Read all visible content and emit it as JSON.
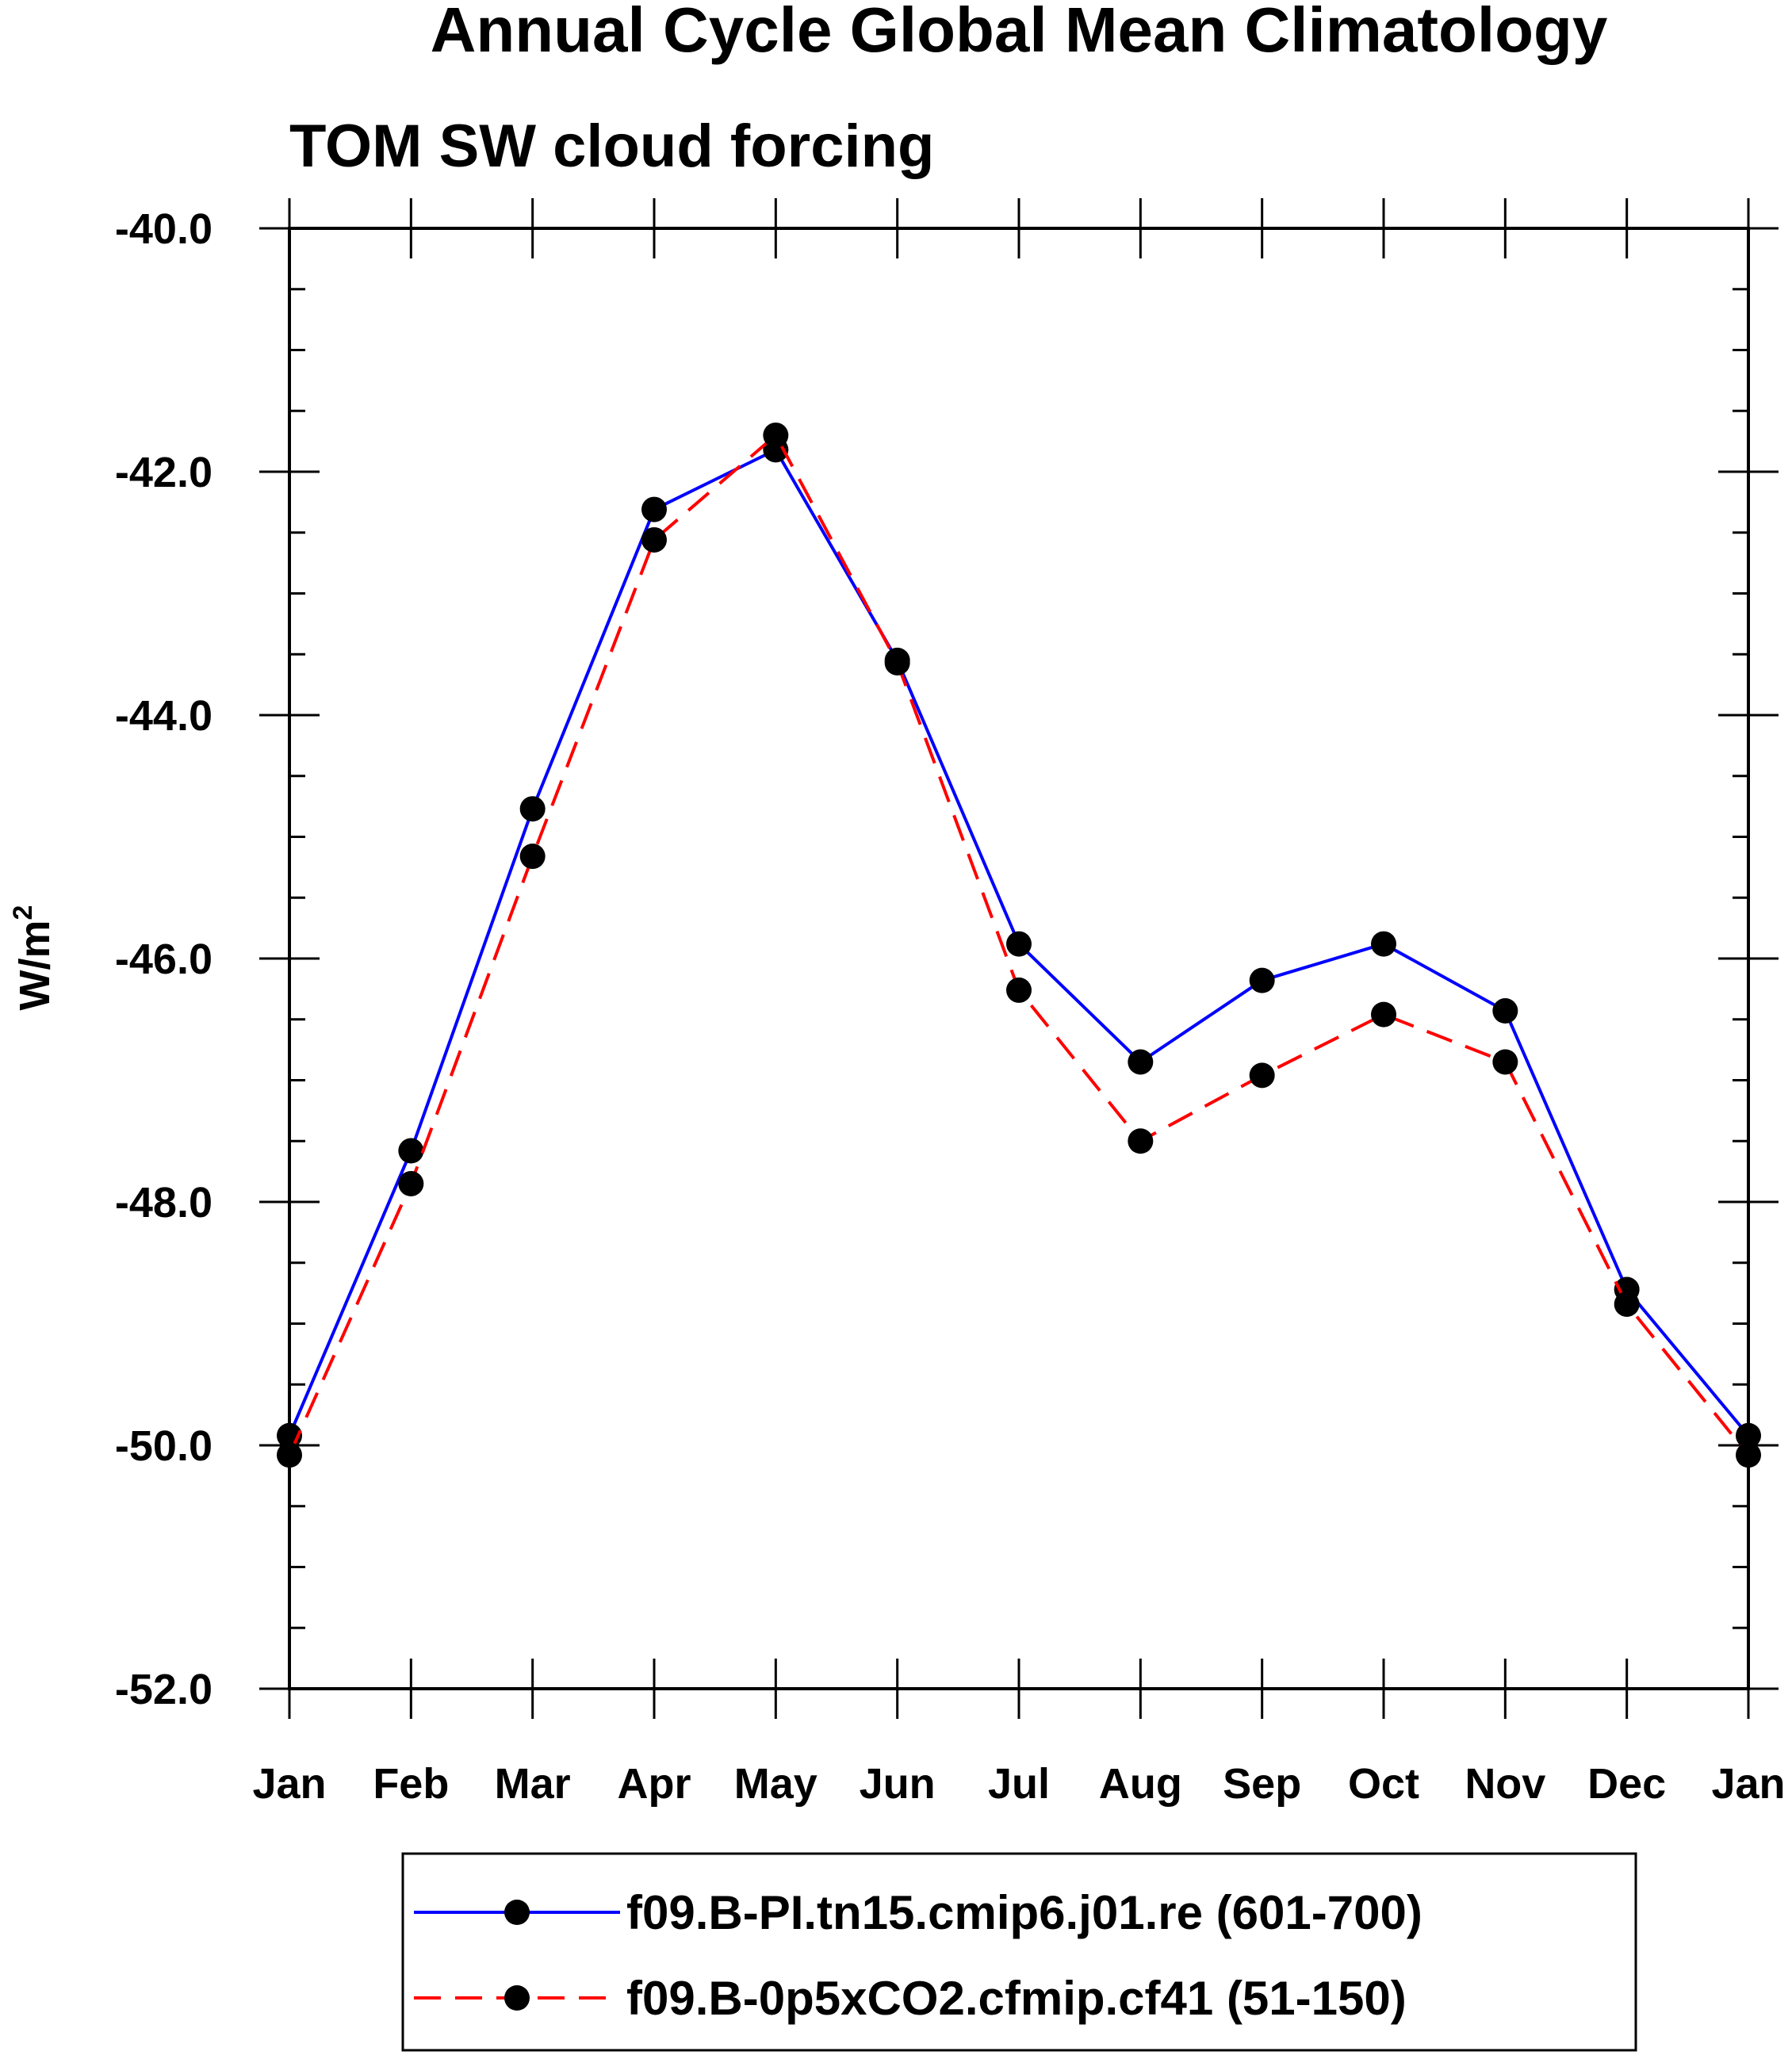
{
  "chart_data": {
    "type": "line",
    "title": "Annual Cycle Global Mean Climatology",
    "subtitle": "TOM SW cloud forcing",
    "xlabel": "",
    "ylabel": "W/m",
    "ylabel_superscript": "2",
    "categories": [
      "Jan",
      "Feb",
      "Mar",
      "Apr",
      "May",
      "Jun",
      "Jul",
      "Aug",
      "Sep",
      "Oct",
      "Nov",
      "Dec",
      "Jan"
    ],
    "ylim": [
      -52.0,
      -40.0
    ],
    "yticks": [
      -52.0,
      -50.0,
      -48.0,
      -46.0,
      -44.0,
      -42.0,
      -40.0
    ],
    "ytick_labels": [
      "-52.0",
      "-50.0",
      "-48.0",
      "-46.0",
      "-44.0",
      "-42.0",
      "-40.0"
    ],
    "series": [
      {
        "name": "f09.B-PI.tn15.cmip6.j01.re (601-700)",
        "color": "#0000ff",
        "dash": "solid",
        "values": [
          -49.92,
          -47.58,
          -44.77,
          -42.31,
          -41.82,
          -43.55,
          -45.88,
          -46.85,
          -46.18,
          -45.88,
          -46.43,
          -48.72,
          -49.92
        ]
      },
      {
        "name": "f09.B-0p5xCO2.cfmip.cf41 (51-150)",
        "color": "#ff0000",
        "dash": "dashed",
        "values": [
          -50.08,
          -47.85,
          -45.16,
          -42.56,
          -41.7,
          -43.57,
          -46.26,
          -47.5,
          -46.96,
          -46.46,
          -46.85,
          -48.84,
          -50.08
        ]
      }
    ],
    "legend_position": "bottom"
  }
}
